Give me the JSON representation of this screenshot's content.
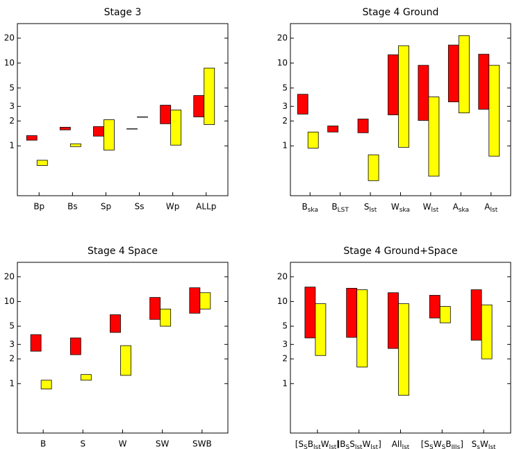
{
  "chart_data": [
    {
      "type": "floating_bar",
      "title": "Stage 3",
      "yscale": "log",
      "categories": [
        "Bp",
        "Bs",
        "Sp",
        "Ss",
        "Wp",
        "ALLp"
      ],
      "ylim": [
        0.25,
        30
      ],
      "yticks": [
        1,
        2,
        3,
        5,
        10,
        20
      ],
      "series": [
        {
          "color": "#ff0000",
          "low": [
            1.17,
            1.56,
            1.31,
            1.61,
            1.85,
            2.24
          ],
          "high": [
            1.33,
            1.68,
            1.71,
            1.61,
            3.1,
            4.06
          ]
        },
        {
          "color": "#ffff00",
          "low": [
            0.58,
            0.98,
            0.89,
            2.24,
            1.02,
            1.81
          ],
          "high": [
            0.67,
            1.06,
            2.07,
            2.24,
            2.71,
            8.7
          ]
        }
      ]
    },
    {
      "type": "floating_bar",
      "title": "Stage 4 Ground",
      "yscale": "log",
      "categories": [
        [
          "B",
          "ska"
        ],
        [
          "B",
          "LST"
        ],
        [
          "S",
          "lst"
        ],
        [
          "W",
          "ska"
        ],
        [
          "W",
          "lst"
        ],
        [
          "A",
          "ska"
        ],
        [
          "A",
          "lst"
        ]
      ],
      "ylim": [
        0.25,
        30
      ],
      "yticks": [
        1,
        2,
        3,
        5,
        10,
        20
      ],
      "series": [
        {
          "color": "#ff0000",
          "low": [
            2.42,
            1.47,
            1.44,
            2.37,
            2.03,
            3.4,
            2.77
          ],
          "high": [
            4.2,
            1.74,
            2.11,
            12.6,
            9.4,
            16.5,
            12.8
          ]
        },
        {
          "color": "#ffff00",
          "low": [
            0.94,
            null,
            0.38,
            0.96,
            0.43,
            2.5,
            0.75
          ],
          "high": [
            1.47,
            null,
            0.78,
            16.2,
            3.9,
            21.5,
            9.4
          ]
        }
      ]
    },
    {
      "type": "floating_bar",
      "title": "Stage 4 Space",
      "yscale": "log",
      "categories": [
        "B",
        "S",
        "W",
        "SW",
        "SWB"
      ],
      "ylim": [
        0.25,
        30
      ],
      "yticks": [
        1,
        2,
        3,
        5,
        10,
        20
      ],
      "series": [
        {
          "color": "#ff0000",
          "low": [
            2.48,
            2.25,
            4.2,
            6.05,
            7.2
          ],
          "high": [
            3.95,
            3.6,
            6.9,
            11.2,
            14.7
          ]
        },
        {
          "color": "#ffff00",
          "low": [
            0.86,
            1.1,
            1.26,
            5.0,
            8.1
          ],
          "high": [
            1.1,
            1.29,
            2.9,
            8.1,
            12.8
          ]
        }
      ]
    },
    {
      "type": "floating_bar",
      "title": "Stage 4 Ground+Space",
      "yscale": "log",
      "categories": [
        [
          "[S",
          "S",
          "B",
          "lst",
          "W",
          "lst",
          "]"
        ],
        [
          "[B",
          "S",
          "S",
          "lst",
          "W",
          "lst",
          "]"
        ],
        [
          "All",
          "lst"
        ],
        [
          "[S",
          "S",
          "W",
          "S",
          "B",
          "IIIs",
          "]"
        ],
        [
          "S",
          "s",
          "W",
          "lst"
        ]
      ],
      "ylim": [
        0.25,
        30
      ],
      "yticks": [
        1,
        2,
        3,
        5,
        10,
        20
      ],
      "series": [
        {
          "color": "#ff0000",
          "low": [
            3.6,
            3.66,
            2.68,
            6.3,
            3.38
          ],
          "high": [
            15.0,
            14.5,
            12.8,
            11.9,
            13.9
          ]
        },
        {
          "color": "#ffff00",
          "low": [
            2.2,
            1.59,
            0.72,
            5.5,
            2.0
          ],
          "high": [
            9.4,
            13.9,
            9.4,
            8.7,
            9.1
          ]
        }
      ]
    }
  ]
}
